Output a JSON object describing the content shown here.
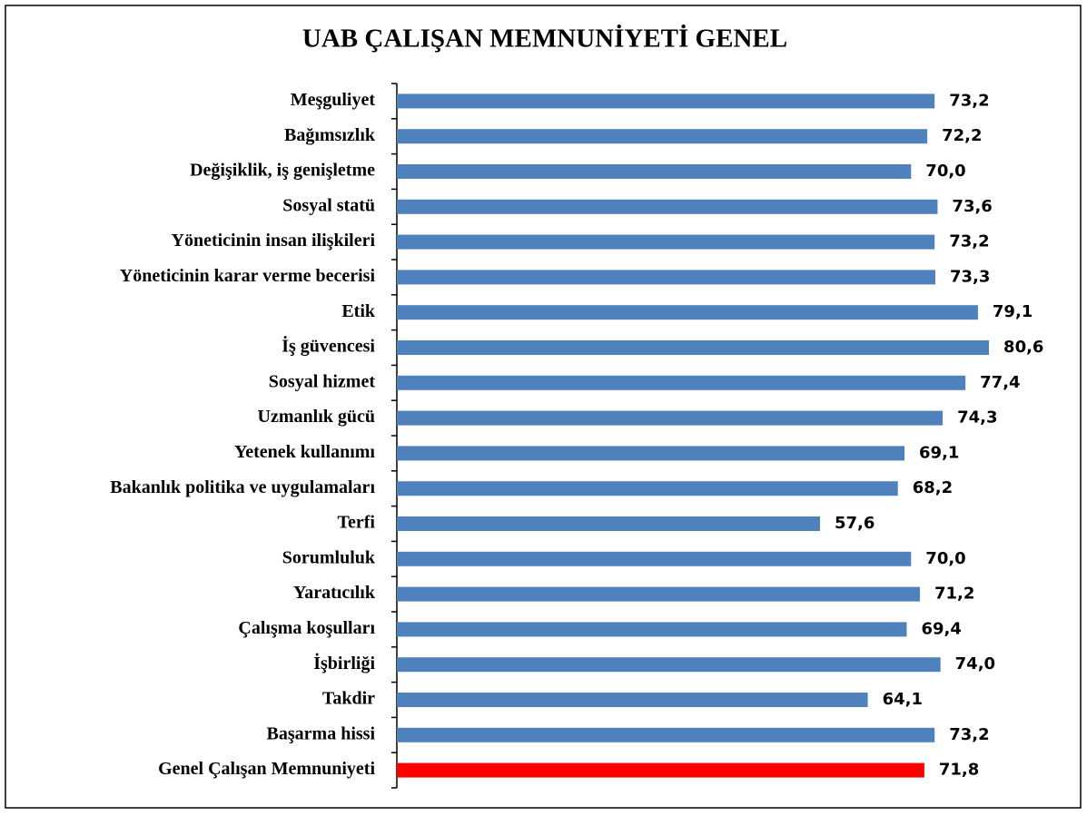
{
  "chart_data": {
    "type": "barh",
    "title": "UAB ÇALIŞAN MEMNUNİYETİ GENEL",
    "categories": [
      "Meşguliyet",
      "Bağımsızlık",
      "Değişiklik, iş genişletme",
      "Sosyal statü",
      "Yöneticinin insan ilişkileri",
      "Yöneticinin karar verme becerisi",
      "Etik",
      "İş güvencesi",
      "Sosyal hizmet",
      "Uzmanlık gücü",
      "Yetenek kullanımı",
      "Bakanlık politika ve uygulamaları",
      "Terfi",
      "Sorumluluk",
      "Yaratıcılık",
      "Çalışma koşulları",
      "İşbirliği",
      "Takdir",
      "Başarma hissi",
      "Genel Çalışan Memnuniyeti"
    ],
    "values": [
      73.2,
      72.2,
      70.0,
      73.6,
      73.2,
      73.3,
      79.1,
      80.6,
      77.4,
      74.3,
      69.1,
      68.2,
      57.6,
      70.0,
      71.2,
      69.4,
      74.0,
      64.1,
      73.2,
      71.8
    ],
    "value_labels": [
      "73,2",
      "72,2",
      "70,0",
      "73,6",
      "73,2",
      "73,3",
      "79,1",
      "80,6",
      "77,4",
      "74,3",
      "69,1",
      "68,2",
      "57,6",
      "70,0",
      "71,2",
      "69,4",
      "74,0",
      "64,1",
      "73,2",
      "71,8"
    ],
    "colors": [
      "#4f81bd",
      "#4f81bd",
      "#4f81bd",
      "#4f81bd",
      "#4f81bd",
      "#4f81bd",
      "#4f81bd",
      "#4f81bd",
      "#4f81bd",
      "#4f81bd",
      "#4f81bd",
      "#4f81bd",
      "#4f81bd",
      "#4f81bd",
      "#4f81bd",
      "#4f81bd",
      "#4f81bd",
      "#4f81bd",
      "#4f81bd",
      "#ff0000"
    ]
  }
}
